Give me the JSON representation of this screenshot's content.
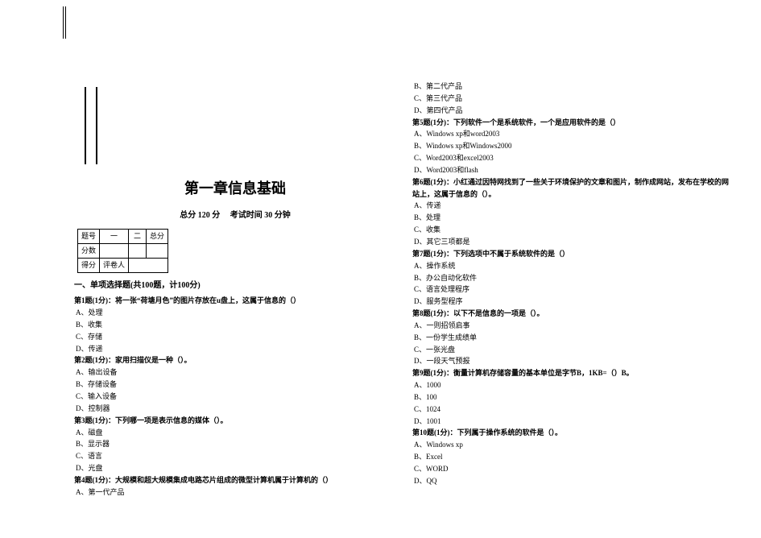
{
  "title": "第一章信息基础",
  "subline_a": "总分 120 分",
  "subline_b": "考试时间 30 分钟",
  "score_table": {
    "r1": [
      "题号",
      "一",
      "二",
      "总分"
    ],
    "r2": [
      "分数",
      "",
      "",
      ""
    ],
    "r3": [
      "得分",
      "评卷人"
    ]
  },
  "section1": "一、单项选择题(共100题，计100分)",
  "left": {
    "q1": {
      "stem": "第1题(1分)：将一张“荷塘月色”的图片存放在u盘上，这属于信息的（）",
      "a": "A、处理",
      "b": "B、收集",
      "c": "C、存储",
      "d": "D、传递"
    },
    "q2": {
      "stem": "第2题(1分)：家用扫描仪是一种（）。",
      "a": "A、输出设备",
      "b": "B、存储设备",
      "c": "C、输入设备",
      "d": "D、控制器"
    },
    "q3": {
      "stem": "第3题(1分)：下列哪一项是表示信息的媒体（）。",
      "a": "A、磁盘",
      "b": "B、显示器",
      "c": "C、语言",
      "d": "D、光盘"
    },
    "q4": {
      "stem": "第4题(1分)：大规模和超大规模集成电路芯片组成的微型计算机属于计算机的（）",
      "a": "A、第一代产品"
    }
  },
  "right": {
    "q4tail": {
      "b": "B、第二代产品",
      "c": "C、第三代产品",
      "d": "D、第四代产品"
    },
    "q5": {
      "stem": "第5题(1分)：下列软件一个是系统软件，一个是应用软件的是（）",
      "a": "A、Windows xp和word2003",
      "b": "B、Windows xp和Windows2000",
      "c": "C、Word2003和excel2003",
      "d": "D、Word2003和flash"
    },
    "q6": {
      "stem": "第6题(1分)：小红通过因特网找到了一些关于环境保护的文章和图片，制作成网站，发布在学校的网站上，这属于信息的（）。",
      "a": "A、传递",
      "b": "B、处理",
      "c": "C、收集",
      "d": "D、其它三项都是"
    },
    "q7": {
      "stem": "第7题(1分)：下列选项中不属于系统软件的是（）",
      "a": "A、操作系统",
      "b": "B、办公自动化软件",
      "c": "C、语言处理程序",
      "d": "D、服务型程序"
    },
    "q8": {
      "stem": "第8题(1分)：以下不是信息的一项是（）。",
      "a": "A、一则招领启事",
      "b": "B、一份学生成绩单",
      "c": "C、一张光盘",
      "d": "D、一段天气预报"
    },
    "q9": {
      "stem": "第9题(1分)：衡量计算机存储容量的基本单位是字节B，1KB=（）B。",
      "a": "A、1000",
      "b": "B、100",
      "c": "C、1024",
      "d": "D、1001"
    },
    "q10": {
      "stem": "第10题(1分)：下列属于操作系统的软件是（）。",
      "a": "A、Windows xp",
      "b": "B、Excel",
      "c": "C、WORD",
      "d": "D、QQ"
    }
  }
}
